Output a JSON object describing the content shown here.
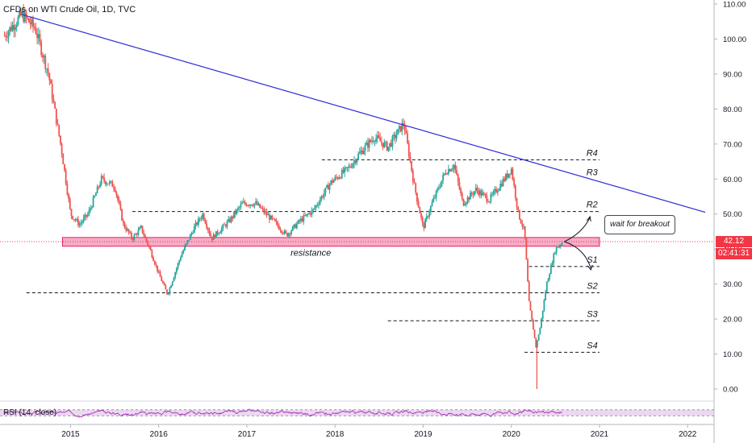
{
  "header": {
    "title": "CFDs on WTI Crude Oil, 1D, TVC"
  },
  "price_badge": {
    "value": "42.12",
    "color": "#f23645"
  },
  "countdown_badge": {
    "value": "02:41:31",
    "color": "#f23645"
  },
  "callout": {
    "text": "wait for breakout"
  },
  "rsi": {
    "label": "RSI (14, close)"
  },
  "colors": {
    "up": "#26a69a",
    "down": "#ef5350",
    "trendline": "#2b2bd6",
    "zone_fill": "#f48fb1",
    "zone_border": "#e91e63",
    "rsi_line": "#9c27b0",
    "rsi_band": "#e1bee7",
    "price_line": "#f23645"
  },
  "chart_data": {
    "type": "candlestick",
    "x_ticks": [
      "2015",
      "2016",
      "2017",
      "2018",
      "2019",
      "2020",
      "2021",
      "2022"
    ],
    "y_ticks": [
      "110.00",
      "100.00",
      "90.00",
      "80.00",
      "70.00",
      "60.00",
      "50.00",
      "40.00",
      "30.00",
      "20.00",
      "10.00",
      "0.00"
    ],
    "ylim": [
      -2,
      112
    ],
    "xlim": [
      2014.2,
      2022.3
    ],
    "price_path": [
      [
        2014.25,
        101
      ],
      [
        2014.45,
        107
      ],
      [
        2014.6,
        103
      ],
      [
        2014.75,
        90
      ],
      [
        2014.9,
        68
      ],
      [
        2015.0,
        50
      ],
      [
        2015.1,
        47
      ],
      [
        2015.2,
        50
      ],
      [
        2015.35,
        60
      ],
      [
        2015.5,
        58
      ],
      [
        2015.6,
        47
      ],
      [
        2015.7,
        43
      ],
      [
        2015.8,
        46
      ],
      [
        2015.9,
        40
      ],
      [
        2016.0,
        33
      ],
      [
        2016.1,
        27
      ],
      [
        2016.25,
        38
      ],
      [
        2016.4,
        46
      ],
      [
        2016.5,
        50
      ],
      [
        2016.6,
        43
      ],
      [
        2016.8,
        48
      ],
      [
        2016.95,
        53
      ],
      [
        2017.1,
        53
      ],
      [
        2017.3,
        48
      ],
      [
        2017.45,
        44
      ],
      [
        2017.6,
        48
      ],
      [
        2017.75,
        51
      ],
      [
        2017.95,
        59
      ],
      [
        2018.15,
        63
      ],
      [
        2018.3,
        68
      ],
      [
        2018.45,
        72
      ],
      [
        2018.6,
        69
      ],
      [
        2018.78,
        76
      ],
      [
        2018.9,
        58
      ],
      [
        2019.0,
        46
      ],
      [
        2019.1,
        53
      ],
      [
        2019.25,
        62
      ],
      [
        2019.35,
        64
      ],
      [
        2019.45,
        53
      ],
      [
        2019.6,
        57
      ],
      [
        2019.75,
        54
      ],
      [
        2019.95,
        61
      ],
      [
        2020.0,
        63
      ],
      [
        2020.08,
        50
      ],
      [
        2020.15,
        45
      ],
      [
        2020.2,
        25
      ],
      [
        2020.28,
        12
      ],
      [
        2020.33,
        18
      ],
      [
        2020.4,
        30
      ],
      [
        2020.5,
        40
      ],
      [
        2020.58,
        42
      ]
    ],
    "wick_low": [
      2020.29,
      0
    ],
    "trendline": [
      [
        2014.45,
        107
      ],
      [
        2022.2,
        50.5
      ]
    ],
    "resistance_zone": {
      "x": [
        2015.0,
        2021.0
      ],
      "y": [
        40.8,
        43.3
      ],
      "label": "resistance"
    },
    "levels": [
      {
        "label": "R4",
        "value": 65.5,
        "x_start": 2017.85,
        "x_end": 2021.0
      },
      {
        "label": "R3",
        "value": 60,
        "x_start": null,
        "x_end": null
      },
      {
        "label": "R2",
        "value": 50.7,
        "x_start": 2015.7,
        "x_end": 2021.0
      },
      {
        "label": "S1",
        "value": 35,
        "x_start": 2020.2,
        "x_end": 2021.0
      },
      {
        "label": "S2",
        "value": 27.5,
        "x_start": 2014.5,
        "x_end": 2021.0
      },
      {
        "label": "S3",
        "value": 19.5,
        "x_start": 2018.6,
        "x_end": 2021.0
      },
      {
        "label": "S4",
        "value": 10.5,
        "x_start": 2020.15,
        "x_end": 2021.0
      }
    ],
    "current_price": 42.12,
    "rsi_band": [
      30,
      70
    ]
  }
}
